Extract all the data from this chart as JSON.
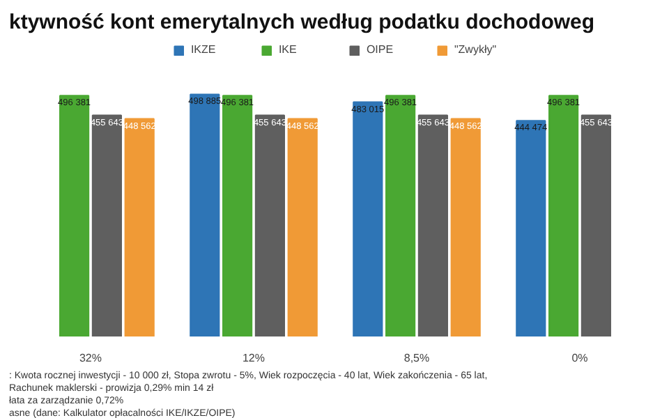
{
  "chart_data": {
    "type": "bar",
    "title": "ktywność kont emerytalnych według podatku dochodoweg",
    "categories": [
      "32%",
      "12%",
      "8,5%",
      "0%"
    ],
    "series": [
      {
        "name": "IKZE",
        "color": "#2e75b6",
        "values": [
          null,
          498885,
          483015,
          444474
        ],
        "value_labels": [
          null,
          "498 885",
          "483 015",
          "444 474"
        ]
      },
      {
        "name": "IKE",
        "color": "#4aa832",
        "values": [
          496381,
          496381,
          496381,
          496381
        ],
        "value_labels": [
          "496 381",
          "496 381",
          "496 381",
          "496 381"
        ]
      },
      {
        "name": "OIPE",
        "color": "#5f5f5f",
        "values": [
          455643,
          455643,
          455643,
          455643
        ],
        "value_labels": [
          "455 643",
          "455 643",
          "455 643",
          "455 643"
        ]
      },
      {
        "name": "\"Zwykły\"",
        "color": "#f09a36",
        "values": [
          448562,
          448562,
          448562,
          null
        ],
        "value_labels": [
          "448 562",
          "448 562",
          "448 562",
          null
        ]
      }
    ],
    "legend": "top",
    "annotations": [
      ": Kwota rocznej inwestycji - 10 000 zł, Stopa zwrotu - 5%, Wiek rozpoczęcia - 40 lat, Wiek zakończenia - 65 lat,",
      "Rachunek maklerski - prowizja 0,29% min 14 zł",
      "łata za zarządzanie 0,72%",
      "asne (dane: Kalkulator opłacalności IKE/IKZE/OIPE)"
    ]
  }
}
